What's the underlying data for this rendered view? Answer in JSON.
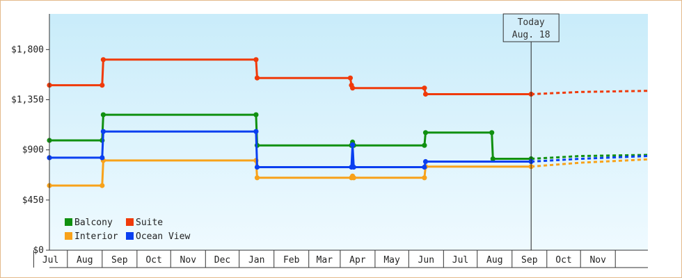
{
  "chart_data": {
    "type": "line",
    "y_ticks": [
      "$0",
      "$450",
      "$900",
      "$1,350",
      "$1,800"
    ],
    "ylim": [
      0,
      1800
    ],
    "ymax": 2120,
    "x_labels": [
      "Jul",
      "Aug",
      "Sep",
      "Oct",
      "Nov",
      "Dec",
      "Jan",
      "Feb",
      "Mar",
      "Apr",
      "May",
      "Jun",
      "Jul",
      "Aug",
      "Sep",
      "Oct",
      "Nov"
    ],
    "x_start": "2014-06-15",
    "x_end": "2015-11-30",
    "today": {
      "line1": "Today",
      "line2": "Aug. 18",
      "date": "2015-08-18"
    },
    "grid": false,
    "legend": "bottom-left",
    "series": [
      {
        "name": "Balcony",
        "color": "#109010",
        "points": [
          [
            "2014-06-15",
            985
          ],
          [
            "2014-08-01",
            985
          ],
          [
            "2014-08-02",
            1215
          ],
          [
            "2014-12-16",
            1215
          ],
          [
            "2014-12-17",
            940
          ],
          [
            "2015-03-11",
            940
          ],
          [
            "2015-03-12",
            970
          ],
          [
            "2015-03-13",
            940
          ],
          [
            "2015-05-15",
            940
          ],
          [
            "2015-05-16",
            1055
          ],
          [
            "2015-07-14",
            1055
          ],
          [
            "2015-07-15",
            820
          ],
          [
            "2015-08-18",
            820
          ]
        ],
        "forecast": [
          [
            "2015-08-18",
            820
          ],
          [
            "2015-10-01",
            845
          ],
          [
            "2015-11-30",
            855
          ]
        ]
      },
      {
        "name": "Suite",
        "color": "#f03a0a",
        "points": [
          [
            "2014-06-15",
            1480
          ],
          [
            "2014-08-01",
            1480
          ],
          [
            "2014-08-02",
            1710
          ],
          [
            "2014-12-16",
            1710
          ],
          [
            "2014-12-17",
            1545
          ],
          [
            "2015-03-10",
            1545
          ],
          [
            "2015-03-11",
            1480
          ],
          [
            "2015-03-12",
            1455
          ],
          [
            "2015-05-15",
            1455
          ],
          [
            "2015-05-16",
            1400
          ],
          [
            "2015-08-18",
            1400
          ]
        ],
        "forecast": [
          [
            "2015-08-18",
            1400
          ],
          [
            "2015-10-01",
            1420
          ],
          [
            "2015-11-30",
            1430
          ]
        ]
      },
      {
        "name": "Interior",
        "color": "#f8a21a",
        "points": [
          [
            "2014-06-15",
            580
          ],
          [
            "2014-08-01",
            580
          ],
          [
            "2014-08-02",
            805
          ],
          [
            "2014-12-16",
            805
          ],
          [
            "2014-12-17",
            650
          ],
          [
            "2015-03-11",
            650
          ],
          [
            "2015-03-12",
            665
          ],
          [
            "2015-03-13",
            650
          ],
          [
            "2015-05-15",
            650
          ],
          [
            "2015-05-16",
            750
          ],
          [
            "2015-08-18",
            750
          ]
        ],
        "forecast": [
          [
            "2015-08-18",
            750
          ],
          [
            "2015-10-01",
            785
          ],
          [
            "2015-11-30",
            815
          ]
        ]
      },
      {
        "name": "Ocean View",
        "color": "#0a3ff0",
        "points": [
          [
            "2014-06-15",
            830
          ],
          [
            "2014-08-01",
            830
          ],
          [
            "2014-08-02",
            1065
          ],
          [
            "2014-12-16",
            1065
          ],
          [
            "2014-12-17",
            745
          ],
          [
            "2015-03-11",
            745
          ],
          [
            "2015-03-12",
            945
          ],
          [
            "2015-03-13",
            745
          ],
          [
            "2015-05-15",
            745
          ],
          [
            "2015-05-16",
            795
          ],
          [
            "2015-08-18",
            795
          ]
        ],
        "forecast": [
          [
            "2015-08-18",
            795
          ],
          [
            "2015-10-01",
            820
          ],
          [
            "2015-11-30",
            845
          ]
        ]
      }
    ]
  }
}
